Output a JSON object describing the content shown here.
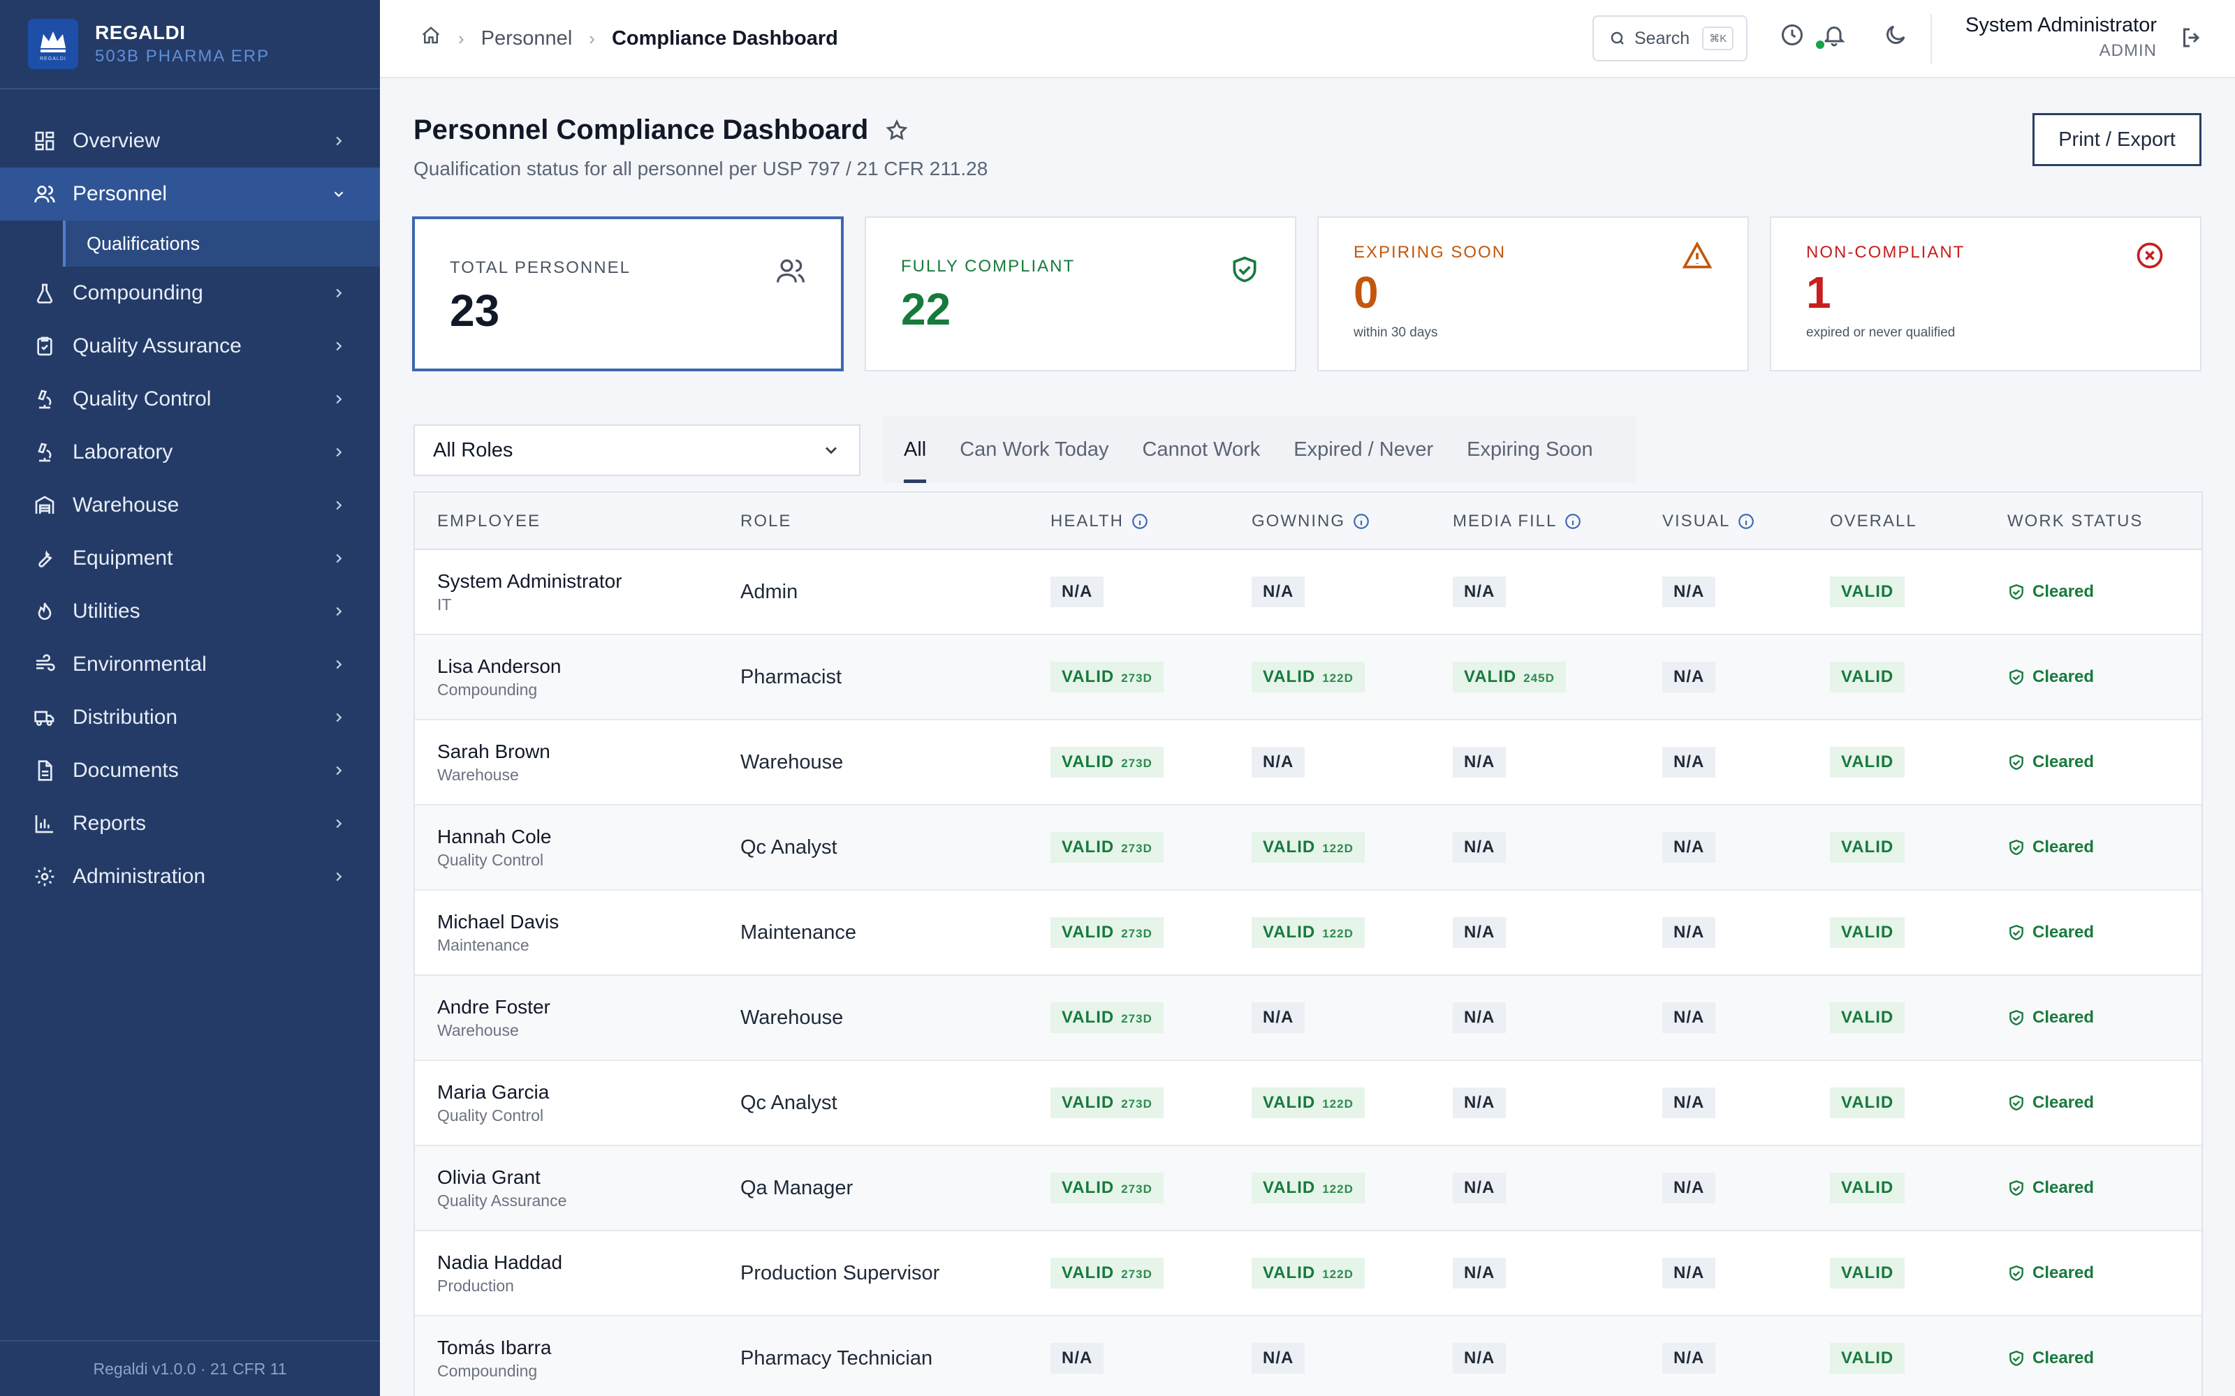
{
  "brand": {
    "name": "REGALDI",
    "subtitle": "503B PHARMA ERP",
    "logo_text": "REGALDI"
  },
  "sidebar": {
    "items": [
      {
        "label": "Overview",
        "icon": "dashboard-icon"
      },
      {
        "label": "Personnel",
        "icon": "users-icon",
        "active": true,
        "sub": [
          {
            "label": "Qualifications"
          }
        ]
      },
      {
        "label": "Compounding",
        "icon": "flask-icon"
      },
      {
        "label": "Quality Assurance",
        "icon": "clipboard-check-icon"
      },
      {
        "label": "Quality Control",
        "icon": "microscope-icon"
      },
      {
        "label": "Laboratory",
        "icon": "microscope-icon"
      },
      {
        "label": "Warehouse",
        "icon": "warehouse-icon"
      },
      {
        "label": "Equipment",
        "icon": "wrench-icon"
      },
      {
        "label": "Utilities",
        "icon": "flame-icon"
      },
      {
        "label": "Environmental",
        "icon": "wind-icon"
      },
      {
        "label": "Distribution",
        "icon": "truck-icon"
      },
      {
        "label": "Documents",
        "icon": "document-icon"
      },
      {
        "label": "Reports",
        "icon": "bar-chart-icon"
      },
      {
        "label": "Administration",
        "icon": "gear-icon"
      }
    ],
    "footer": "Regaldi v1.0.0 · 21 CFR 11"
  },
  "topbar": {
    "breadcrumb": [
      "Personnel",
      "Compliance Dashboard"
    ],
    "search_label": "Search",
    "search_kbd": "⌘K",
    "user_name": "System Administrator",
    "user_role": "ADMIN"
  },
  "page": {
    "title": "Personnel Compliance Dashboard",
    "subtitle": "Qualification status for all personnel per USP 797 / 21 CFR 211.28",
    "export_label": "Print / Export"
  },
  "cards": [
    {
      "label": "TOTAL PERSONNEL",
      "value": "23",
      "note": "",
      "color": "#111827",
      "icon": "users-icon"
    },
    {
      "label": "FULLY COMPLIANT",
      "value": "22",
      "note": "",
      "color": "#177a3c",
      "icon": "shield-check-icon"
    },
    {
      "label": "EXPIRING SOON",
      "value": "0",
      "note": "within 30 days",
      "color": "#c2570c",
      "icon": "warning-icon"
    },
    {
      "label": "NON-COMPLIANT",
      "value": "1",
      "note": "expired or never qualified",
      "color": "#c81e1e",
      "icon": "x-circle-icon"
    }
  ],
  "filters": {
    "role_selected": "All Roles",
    "tabs": [
      "All",
      "Can Work Today",
      "Cannot Work",
      "Expired / Never",
      "Expiring Soon"
    ]
  },
  "table": {
    "headers": [
      "EMPLOYEE",
      "ROLE",
      "HEALTH",
      "GOWNING",
      "MEDIA FILL",
      "VISUAL",
      "OVERALL",
      "WORK STATUS"
    ],
    "rows": [
      {
        "name": "System Administrator",
        "dept": "IT",
        "role": "Admin",
        "health": [
          "N/A",
          ""
        ],
        "gowning": [
          "N/A",
          ""
        ],
        "media": [
          "N/A",
          ""
        ],
        "visual": [
          "N/A",
          ""
        ],
        "overall": "VALID",
        "status": "Cleared"
      },
      {
        "name": "Lisa Anderson",
        "dept": "Compounding",
        "role": "Pharmacist",
        "health": [
          "VALID",
          "273D"
        ],
        "gowning": [
          "VALID",
          "122D"
        ],
        "media": [
          "VALID",
          "245D"
        ],
        "visual": [
          "N/A",
          ""
        ],
        "overall": "VALID",
        "status": "Cleared"
      },
      {
        "name": "Sarah Brown",
        "dept": "Warehouse",
        "role": "Warehouse",
        "health": [
          "VALID",
          "273D"
        ],
        "gowning": [
          "N/A",
          ""
        ],
        "media": [
          "N/A",
          ""
        ],
        "visual": [
          "N/A",
          ""
        ],
        "overall": "VALID",
        "status": "Cleared"
      },
      {
        "name": "Hannah Cole",
        "dept": "Quality Control",
        "role": "Qc Analyst",
        "health": [
          "VALID",
          "273D"
        ],
        "gowning": [
          "VALID",
          "122D"
        ],
        "media": [
          "N/A",
          ""
        ],
        "visual": [
          "N/A",
          ""
        ],
        "overall": "VALID",
        "status": "Cleared"
      },
      {
        "name": "Michael Davis",
        "dept": "Maintenance",
        "role": "Maintenance",
        "health": [
          "VALID",
          "273D"
        ],
        "gowning": [
          "VALID",
          "122D"
        ],
        "media": [
          "N/A",
          ""
        ],
        "visual": [
          "N/A",
          ""
        ],
        "overall": "VALID",
        "status": "Cleared"
      },
      {
        "name": "Andre Foster",
        "dept": "Warehouse",
        "role": "Warehouse",
        "health": [
          "VALID",
          "273D"
        ],
        "gowning": [
          "N/A",
          ""
        ],
        "media": [
          "N/A",
          ""
        ],
        "visual": [
          "N/A",
          ""
        ],
        "overall": "VALID",
        "status": "Cleared"
      },
      {
        "name": "Maria Garcia",
        "dept": "Quality Control",
        "role": "Qc Analyst",
        "health": [
          "VALID",
          "273D"
        ],
        "gowning": [
          "VALID",
          "122D"
        ],
        "media": [
          "N/A",
          ""
        ],
        "visual": [
          "N/A",
          ""
        ],
        "overall": "VALID",
        "status": "Cleared"
      },
      {
        "name": "Olivia Grant",
        "dept": "Quality Assurance",
        "role": "Qa Manager",
        "health": [
          "VALID",
          "273D"
        ],
        "gowning": [
          "VALID",
          "122D"
        ],
        "media": [
          "N/A",
          ""
        ],
        "visual": [
          "N/A",
          ""
        ],
        "overall": "VALID",
        "status": "Cleared"
      },
      {
        "name": "Nadia Haddad",
        "dept": "Production",
        "role": "Production Supervisor",
        "health": [
          "VALID",
          "273D"
        ],
        "gowning": [
          "VALID",
          "122D"
        ],
        "media": [
          "N/A",
          ""
        ],
        "visual": [
          "N/A",
          ""
        ],
        "overall": "VALID",
        "status": "Cleared"
      },
      {
        "name": "Tomás Ibarra",
        "dept": "Compounding",
        "role": "Pharmacy Technician",
        "health": [
          "N/A",
          ""
        ],
        "gowning": [
          "N/A",
          ""
        ],
        "media": [
          "N/A",
          ""
        ],
        "visual": [
          "N/A",
          ""
        ],
        "overall": "VALID",
        "status": "Cleared"
      }
    ]
  }
}
